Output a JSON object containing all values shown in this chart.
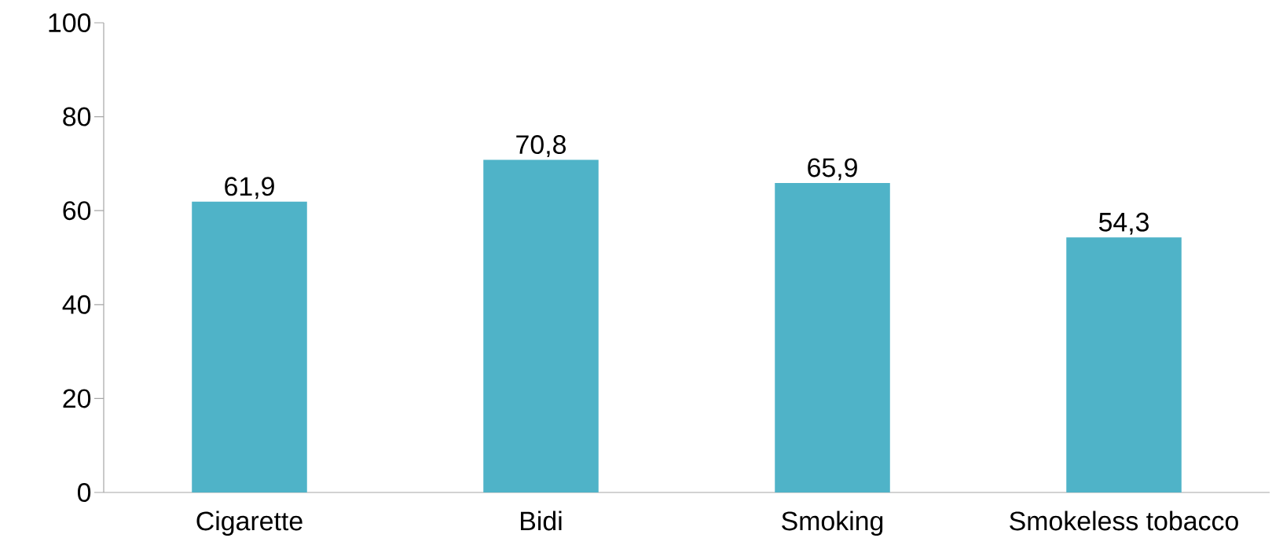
{
  "chart_data": {
    "type": "bar",
    "categories": [
      "Cigarette",
      "Bidi",
      "Smoking",
      "Smokeless tobacco"
    ],
    "values": [
      61.9,
      70.8,
      65.9,
      54.3
    ],
    "value_labels": [
      "61,9",
      "70,8",
      "65,9",
      "54,3"
    ],
    "color": "#4fb3c8",
    "ylim": [
      0,
      100
    ],
    "yticks": [
      0,
      20,
      40,
      60,
      80,
      100
    ]
  }
}
